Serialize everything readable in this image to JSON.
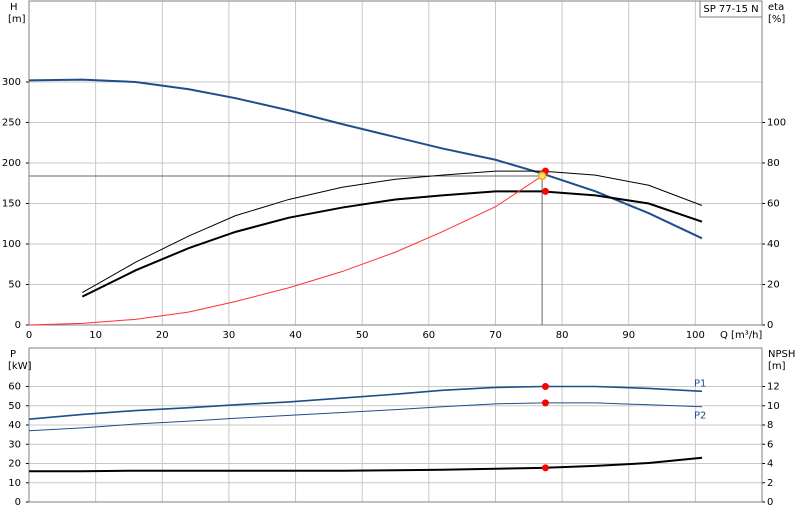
{
  "chart_data": [
    {
      "type": "line",
      "title": "SP 77-15 N",
      "ylabel": "H",
      "yunit": "[m]",
      "y2label": "eta",
      "y2unit": "[%]",
      "xlabel": "Q [m³/h]",
      "x": [
        0,
        8,
        16,
        24,
        31,
        39,
        47,
        55,
        62,
        70,
        77,
        85,
        93,
        101
      ],
      "xlim": [
        0,
        110
      ],
      "xticks": [
        0,
        10,
        20,
        30,
        40,
        50,
        60,
        70,
        80,
        90,
        100
      ],
      "ylim": [
        0,
        400
      ],
      "yticks": [
        0,
        50,
        100,
        150,
        200,
        250,
        300
      ],
      "y2lim": [
        0,
        160
      ],
      "y2ticks": [
        0,
        20,
        40,
        60,
        80,
        100
      ],
      "grid": true,
      "series": [
        {
          "color": "#1f4e8c",
          "width": 2,
          "values": [
            302,
            303,
            300,
            291,
            280,
            265,
            248,
            232,
            218,
            204,
            187,
            165,
            138,
            107
          ]
        },
        {
          "color": "#000000",
          "width": 1,
          "axis": "y2",
          "values": [
            null,
            16,
            31,
            44,
            54,
            62,
            68,
            72,
            74,
            76,
            76,
            74,
            69,
            59
          ]
        },
        {
          "color": "#000000",
          "width": 2,
          "axis": "y2",
          "values": [
            null,
            14,
            27,
            38,
            46,
            53,
            58,
            62,
            64,
            66,
            66,
            64,
            60,
            51
          ]
        },
        {
          "color": "#ff3030",
          "width": 1,
          "values": [
            0,
            2,
            7,
            16,
            29,
            46,
            66,
            90,
            115,
            146,
            184,
            null,
            null,
            null
          ]
        }
      ],
      "markers": [
        {
          "x": 77.5,
          "y": 76,
          "axis": "y2",
          "color": "#ff0000"
        },
        {
          "x": 77.5,
          "y": 66,
          "axis": "y2",
          "color": "#ff0000"
        }
      ],
      "duty_point": {
        "x": 77,
        "y": 184,
        "color": "#f5a623"
      }
    },
    {
      "type": "line",
      "ylabel": "P",
      "yunit": "[kW]",
      "y2label": "NPSH",
      "y2unit": "[m]",
      "x": [
        0,
        8,
        16,
        24,
        31,
        39,
        47,
        55,
        62,
        70,
        77,
        85,
        93,
        101
      ],
      "xlim": [
        0,
        110
      ],
      "ylim": [
        0,
        80
      ],
      "yticks": [
        0,
        10,
        20,
        30,
        40,
        50,
        60
      ],
      "y2lim": [
        0,
        16
      ],
      "y2ticks": [
        0,
        2,
        4,
        6,
        8,
        10,
        12
      ],
      "grid": true,
      "series": [
        {
          "name": "P1",
          "color": "#1f4e8c",
          "width": 1.6,
          "values": [
            43,
            45.5,
            47.5,
            49,
            50.5,
            52,
            54,
            56,
            58,
            59.5,
            60,
            60,
            59,
            57.5
          ]
        },
        {
          "name": "P2",
          "color": "#1f4e8c",
          "width": 1,
          "values": [
            37,
            38.5,
            40.5,
            42,
            43.5,
            45,
            46.5,
            48,
            49.5,
            51,
            51.5,
            51.5,
            50.5,
            49.5
          ]
        },
        {
          "color": "#000000",
          "width": 2,
          "axis": "y2",
          "values": [
            3.2,
            3.2,
            3.25,
            3.25,
            3.25,
            3.25,
            3.25,
            3.3,
            3.35,
            3.45,
            3.55,
            3.75,
            4.05,
            4.6
          ]
        }
      ],
      "markers": [
        {
          "x": 77.5,
          "y": 60,
          "color": "#ff0000"
        },
        {
          "x": 77.5,
          "y": 51.5,
          "color": "#ff0000"
        },
        {
          "x": 77.5,
          "y": 3.55,
          "axis": "y2",
          "color": "#ff0000"
        }
      ]
    }
  ]
}
